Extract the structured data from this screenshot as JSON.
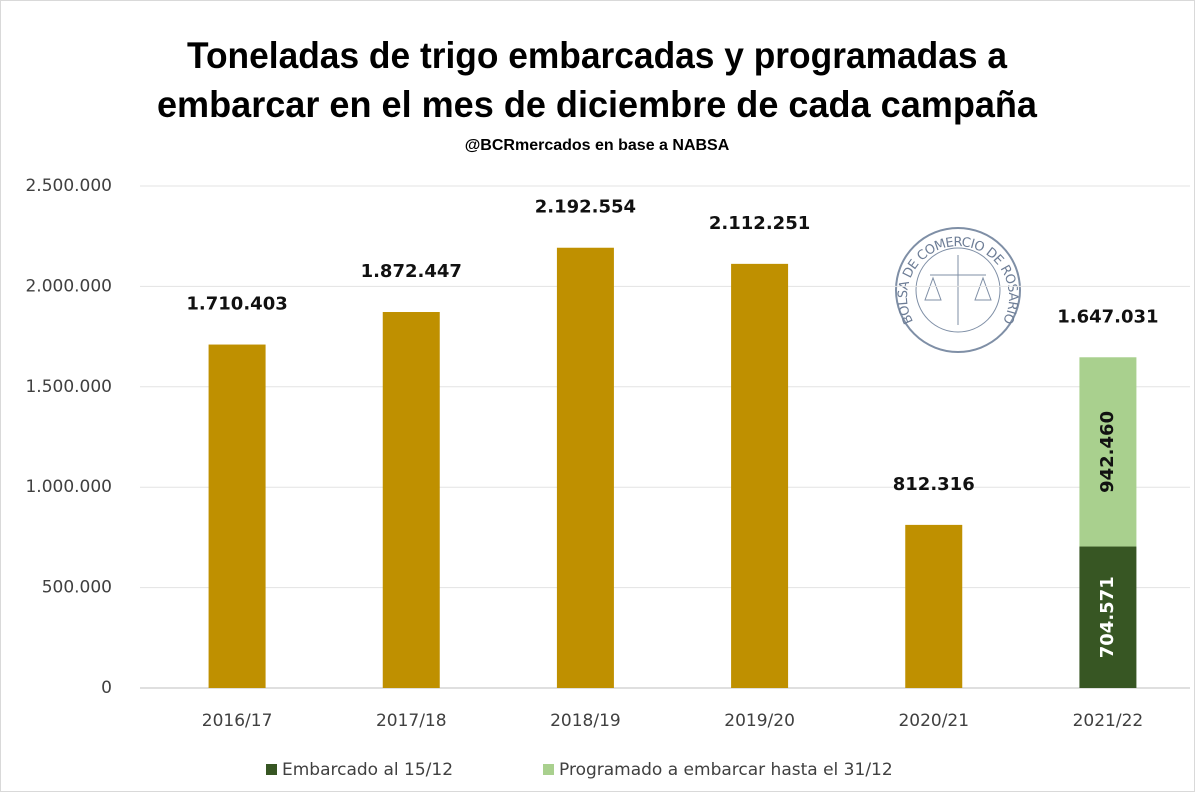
{
  "chart_data": {
    "type": "bar",
    "title": [
      "Toneladas de trigo embarcadas y programadas a",
      "embarcar en el mes de diciembre de cada campaña"
    ],
    "subtitle": "@BCRmercados en base a NABSA",
    "logo_text": "BOLSA DE COMERCIO DE ROSARIO",
    "categories": [
      "2016/17",
      "2017/18",
      "2018/19",
      "2019/20",
      "2020/21",
      "2021/22"
    ],
    "values": [
      1710403,
      1872447,
      2192554,
      2112251,
      812316,
      1647031
    ],
    "value_labels": [
      "1.710.403",
      "1.872.447",
      "2.192.554",
      "2.112.251",
      "812.316",
      "1.647.031"
    ],
    "color": "#bf9000",
    "series": [
      {
        "name": "Embarcado al 15/12",
        "color": "#375623",
        "values": [
          null,
          null,
          null,
          null,
          null,
          704571
        ],
        "value_labels": [
          null,
          null,
          null,
          null,
          null,
          "704.571"
        ]
      },
      {
        "name": "Programado a embarcar hasta el 31/12",
        "color": "#a9d08e",
        "values": [
          null,
          null,
          null,
          null,
          null,
          942460
        ],
        "value_labels": [
          null,
          null,
          null,
          null,
          null,
          "942.460"
        ]
      }
    ],
    "ylim": [
      0,
      2500000
    ],
    "yticks": [
      0,
      {
        "value": 500000,
        "label": "500.000"
      },
      {
        "value": 1000000,
        "label": "1.000.000"
      },
      {
        "value": 1500000,
        "label": "1.500.000"
      },
      {
        "value": 2000000,
        "label": "2.000.000"
      },
      {
        "value": 2500000,
        "label": "2.500.000"
      }
    ],
    "grid": true
  }
}
